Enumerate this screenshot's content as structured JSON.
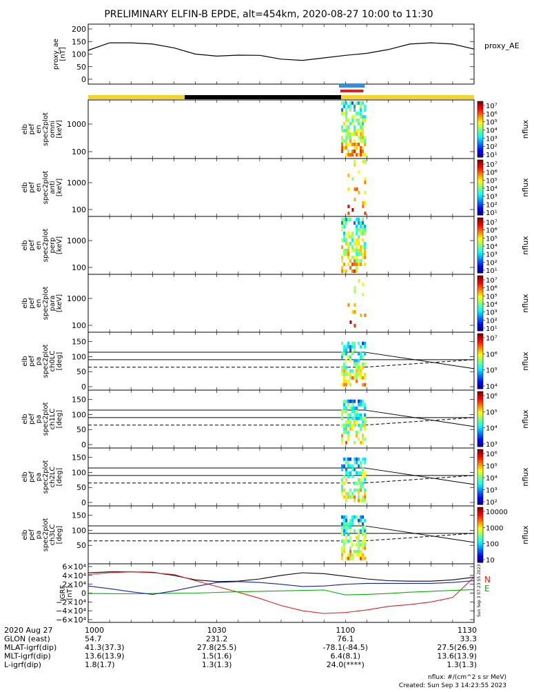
{
  "title": "PRELIMINARY ELFIN-B EPDE, alt=454km, 2020-08-27 10:00 to 11:30",
  "colors": {
    "gold_bar": "#f5d327",
    "black_bar": "#000000",
    "blue_marker": "#2f8fe0",
    "red_marker": "#e02020"
  },
  "panels": [
    {
      "id": "proxy_ae",
      "ylabel": [
        "proxy_ae",
        "[nT]"
      ],
      "ticks": [
        "200",
        "150",
        "100",
        "50",
        "0"
      ],
      "side_label": "proxy_AE"
    },
    {
      "id": "omni",
      "ylabel": [
        "elb",
        "pef",
        "en",
        "spec2plot",
        "omni",
        "[keV]"
      ],
      "ticks": [
        "1000",
        "100"
      ],
      "cbar_label": "nflux",
      "cbar_ticks": [
        "10⁷",
        "10⁶",
        "10⁵",
        "10⁴",
        "10³",
        "10²",
        "10¹"
      ]
    },
    {
      "id": "anti",
      "ylabel": [
        "elb",
        "pef",
        "en",
        "spec2plot",
        "anti",
        "[keV]"
      ],
      "ticks": [
        "1000",
        "100"
      ],
      "cbar_label": "nflux",
      "cbar_ticks": [
        "10⁷",
        "10⁶",
        "10⁵",
        "10⁴",
        "10³",
        "10²",
        "10¹"
      ]
    },
    {
      "id": "perp",
      "ylabel": [
        "elb",
        "pef",
        "en",
        "spec2plot",
        "perp",
        "[keV]"
      ],
      "ticks": [
        "1000",
        "100"
      ],
      "cbar_label": "nflux",
      "cbar_ticks": [
        "10⁷",
        "10⁶",
        "10⁵",
        "10⁴",
        "10³",
        "10²",
        "10¹"
      ]
    },
    {
      "id": "para",
      "ylabel": [
        "elb",
        "pef",
        "en",
        "spec2plot",
        "para",
        "[keV]"
      ],
      "ticks": [
        "1000",
        "100"
      ],
      "cbar_label": "nflux",
      "cbar_ticks": [
        "10⁷",
        "10⁶",
        "10⁵",
        "10⁴",
        "10³",
        "10²",
        "10¹"
      ]
    },
    {
      "id": "ch0LC",
      "ylabel": [
        "elb",
        "pef",
        "pa",
        "spec2plot",
        "ch0LC",
        "[deg]"
      ],
      "ticks": [
        "150",
        "100",
        "50",
        "0"
      ],
      "cbar_label": "nflux",
      "cbar_ticks": [
        "10⁷",
        "10⁶",
        "10⁵",
        "10⁴"
      ]
    },
    {
      "id": "ch1LC",
      "ylabel": [
        "elb",
        "pef",
        "pa",
        "spec2plot",
        "ch1LC",
        "[deg]"
      ],
      "ticks": [
        "150",
        "100",
        "50",
        "0"
      ],
      "cbar_label": "nflux",
      "cbar_ticks": [
        "10⁶",
        "10⁵",
        "10⁴",
        "10³"
      ]
    },
    {
      "id": "ch2LC",
      "ylabel": [
        "elb",
        "pef",
        "pa",
        "spec2plot",
        "ch2LC",
        "[deg]"
      ],
      "ticks": [
        "150",
        "100",
        "50",
        "0"
      ],
      "cbar_label": "nflux",
      "cbar_ticks": [
        "10⁶",
        "10⁵",
        "10⁴",
        "10³",
        "10²"
      ]
    },
    {
      "id": "ch3LC",
      "ylabel": [
        "elb",
        "pef",
        "pa",
        "spec2plot",
        "ch3LC",
        "[deg]"
      ],
      "ticks": [
        "150",
        "100",
        "50"
      ],
      "cbar_label": "nflux",
      "cbar_ticks": [
        "10000",
        "1000",
        "100",
        "10"
      ]
    },
    {
      "id": "igrf",
      "ylabel": [
        "IGRF",
        "[nT]"
      ],
      "ticks": [
        "6×10⁴",
        "4×10⁴",
        "2×10⁴",
        "0",
        "−2×10⁴",
        "−4×10⁴",
        "−6×10⁴"
      ],
      "legend": [
        "N",
        "E"
      ],
      "side_note": "Sun Sep  3 07:23:55 2023"
    }
  ],
  "footer_rows": [
    {
      "label": "2020 Aug 27",
      "values": [
        "1000",
        "1030",
        "1100",
        "1130"
      ]
    },
    {
      "label": "GLON (east)",
      "values": [
        "54.7",
        "231.2",
        "76.1",
        "33.3"
      ]
    },
    {
      "label": "MLAT-igrf(dip)",
      "values": [
        "41.3(37.3)",
        "27.8(25.5)",
        "-78.1(-84.5)",
        "27.5(26.9)"
      ]
    },
    {
      "label": "MLT-igrf(dip)",
      "values": [
        "13.6(13.9)",
        "1.5(1.6)",
        "6.4(8.1)",
        "13.6(13.9)"
      ]
    },
    {
      "label": "L-igrf(dip)",
      "values": [
        "1.8(1.7)",
        "1.3(1.3)",
        "24.0(****)",
        "1.3(1.3)"
      ]
    }
  ],
  "units_note": "nflux: #/(cm^2 s sr MeV)",
  "created_note": "Created: Sun Sep  3 14:23:55 2023",
  "chart_data": {
    "type": "line",
    "x": [
      "10:00",
      "10:05",
      "10:10",
      "10:15",
      "10:20",
      "10:25",
      "10:30",
      "10:35",
      "10:40",
      "10:45",
      "10:50",
      "10:55",
      "11:00",
      "11:05",
      "11:10",
      "11:15",
      "11:20",
      "11:25",
      "11:30"
    ],
    "series": [
      {
        "name": "proxy_AE",
        "values": [
          115,
          145,
          145,
          140,
          125,
          100,
          92,
          96,
          95,
          80,
          75,
          85,
          95,
          103,
          118,
          140,
          145,
          140,
          120
        ]
      },
      {
        "name": "N",
        "values": [
          42000,
          46000,
          48000,
          46000,
          42000,
          28000,
          15000,
          2000,
          -12000,
          -28000,
          -40000,
          -46000,
          -44000,
          -38000,
          -30000,
          -26000,
          -20000,
          -10000,
          36000
        ]
      },
      {
        "name": "E",
        "values": [
          -1000,
          -1200,
          -1500,
          -1000,
          -500,
          0,
          1500,
          3000,
          4000,
          5000,
          6000,
          7000,
          -4000,
          -3000,
          -1000,
          2000,
          4000,
          6000,
          8000
        ]
      }
    ],
    "ylim": [
      0,
      200
    ],
    "xlabel": "2020 Aug 27"
  }
}
